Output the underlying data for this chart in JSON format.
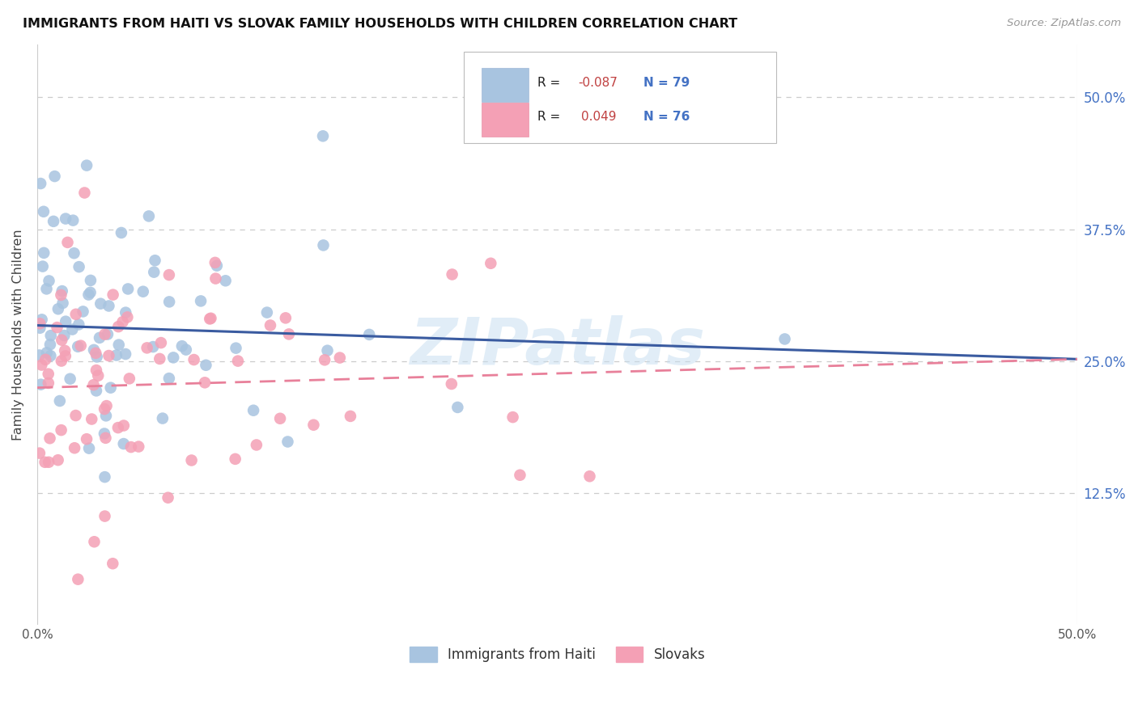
{
  "title": "IMMIGRANTS FROM HAITI VS SLOVAK FAMILY HOUSEHOLDS WITH CHILDREN CORRELATION CHART",
  "source": "Source: ZipAtlas.com",
  "ylabel": "Family Households with Children",
  "ytick_values": [
    0.5,
    0.375,
    0.25,
    0.125
  ],
  "ytick_labels": [
    "50.0%",
    "37.5%",
    "25.0%",
    "12.5%"
  ],
  "xmin": 0.0,
  "xmax": 0.5,
  "ymin": 0.0,
  "ymax": 0.55,
  "haiti_color": "#a8c4e0",
  "slovak_color": "#f4a0b5",
  "haiti_line_color": "#3a5ba0",
  "slovak_line_color": "#e8809a",
  "watermark": "ZIPatlas",
  "background_color": "#ffffff",
  "grid_color": "#cccccc",
  "legend_haiti_r": "-0.087",
  "legend_haiti_n": "79",
  "legend_slovak_r": "0.049",
  "legend_slovak_n": "76",
  "haiti_line_start_y": 0.284,
  "haiti_line_end_y": 0.252,
  "slovak_line_start_y": 0.225,
  "slovak_line_end_y": 0.252
}
